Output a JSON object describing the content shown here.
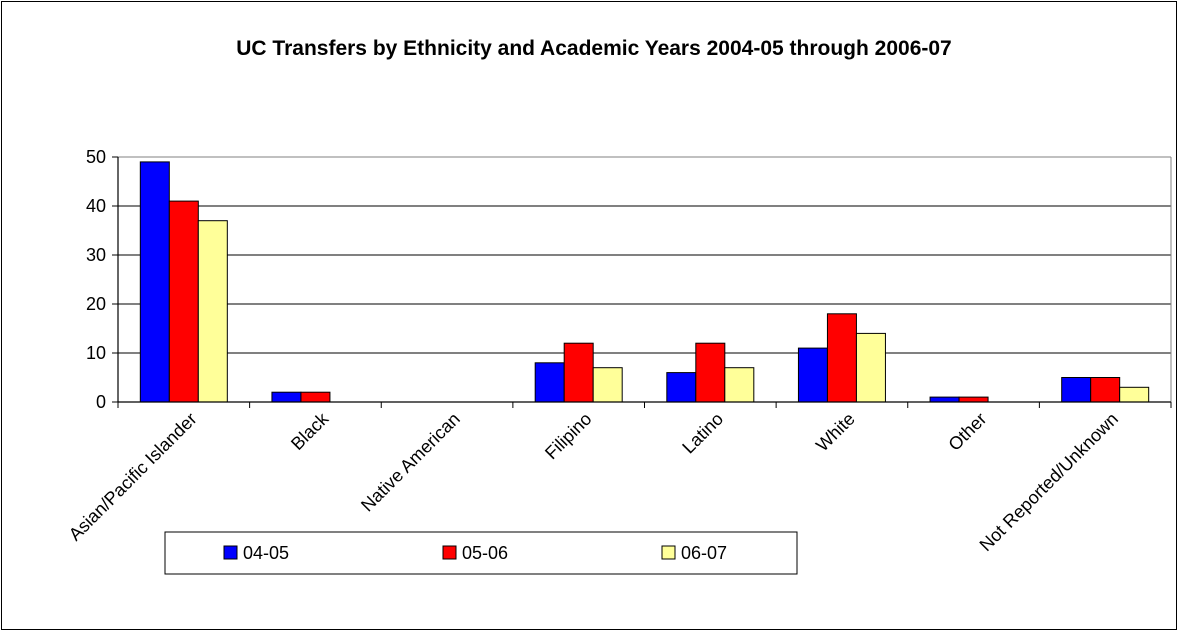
{
  "chart_data": {
    "type": "bar",
    "title": "UC Transfers by Ethnicity and Academic Years 2004-05 through 2006-07",
    "xlabel": "",
    "ylabel": "",
    "ylim": [
      0,
      50
    ],
    "yticks": [
      0,
      10,
      20,
      30,
      40,
      50
    ],
    "grid": true,
    "legend_position": "bottom-left",
    "categories": [
      "Asian/Pacific Islander",
      "Black",
      "Native American",
      "Filipino",
      "Latino",
      "White",
      "Other",
      "Not Reported/Unknown"
    ],
    "series": [
      {
        "name": "04-05",
        "color": "#0000FF",
        "values": [
          49,
          2,
          0,
          8,
          6,
          11,
          1,
          5
        ]
      },
      {
        "name": "05-06",
        "color": "#FF0000",
        "values": [
          41,
          2,
          0,
          12,
          12,
          18,
          1,
          5
        ]
      },
      {
        "name": "06-07",
        "color": "#FFFF99",
        "values": [
          37,
          0,
          0,
          7,
          7,
          14,
          0,
          3
        ]
      }
    ]
  }
}
